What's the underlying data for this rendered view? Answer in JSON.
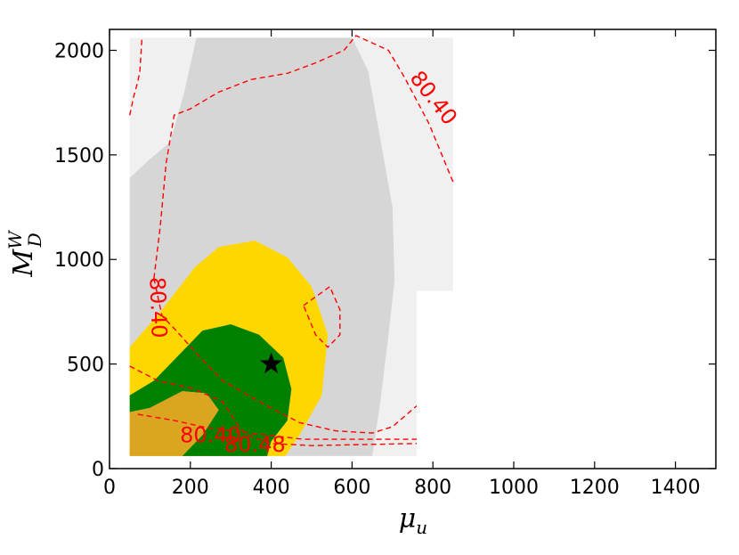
{
  "chart_data": {
    "type": "contour",
    "xlabel": "μ_u",
    "ylabel": "M_D^W",
    "xlim": [
      0,
      1500
    ],
    "ylim": [
      0,
      2100
    ],
    "x_ticks": [
      "0",
      "200",
      "400",
      "600",
      "800",
      "1000",
      "1200",
      "1400"
    ],
    "y_ticks": [
      "0",
      "500",
      "1000",
      "1500",
      "2000"
    ],
    "grid": false,
    "legend": "none",
    "best_fit_point": {
      "x": 400,
      "y": 500,
      "marker": "star"
    },
    "regions": [
      {
        "color": "#f0f0f0",
        "points": [
          [
            50,
            60
          ],
          [
            760,
            60
          ],
          [
            760,
            850
          ],
          [
            850,
            850
          ],
          [
            850,
            2060
          ],
          [
            50,
            2060
          ]
        ]
      },
      {
        "color": "#d6d6d6",
        "points": [
          [
            50,
            1390
          ],
          [
            100,
            1480
          ],
          [
            150,
            1560
          ],
          [
            185,
            1800
          ],
          [
            215,
            2060
          ],
          [
            600,
            2060
          ],
          [
            640,
            1900
          ],
          [
            700,
            1250
          ],
          [
            705,
            900
          ],
          [
            690,
            640
          ],
          [
            670,
            320
          ],
          [
            650,
            60
          ],
          [
            50,
            60
          ]
        ]
      },
      {
        "color": "#ffd700",
        "points": [
          [
            50,
            580
          ],
          [
            130,
            760
          ],
          [
            210,
            960
          ],
          [
            270,
            1060
          ],
          [
            360,
            1090
          ],
          [
            440,
            1010
          ],
          [
            500,
            870
          ],
          [
            540,
            640
          ],
          [
            525,
            350
          ],
          [
            470,
            160
          ],
          [
            435,
            60
          ],
          [
            50,
            60
          ]
        ]
      },
      {
        "color": "#008000",
        "points": [
          [
            50,
            350
          ],
          [
            110,
            420
          ],
          [
            170,
            540
          ],
          [
            230,
            660
          ],
          [
            300,
            690
          ],
          [
            370,
            640
          ],
          [
            430,
            530
          ],
          [
            450,
            380
          ],
          [
            440,
            230
          ],
          [
            400,
            130
          ],
          [
            390,
            60
          ],
          [
            180,
            60
          ],
          [
            230,
            160
          ],
          [
            270,
            280
          ],
          [
            240,
            360
          ],
          [
            180,
            370
          ],
          [
            100,
            290
          ],
          [
            50,
            270
          ]
        ]
      },
      {
        "color": "#daa520",
        "points": [
          [
            50,
            270
          ],
          [
            100,
            290
          ],
          [
            180,
            370
          ],
          [
            240,
            360
          ],
          [
            270,
            280
          ],
          [
            230,
            160
          ],
          [
            180,
            60
          ],
          [
            50,
            60
          ]
        ]
      }
    ],
    "contours": [
      {
        "label": "80.40",
        "points": [
          [
            50,
            1690
          ],
          [
            60,
            1780
          ],
          [
            70,
            1850
          ],
          [
            75,
            1900
          ],
          [
            80,
            2050
          ]
        ]
      },
      {
        "label": "80.40",
        "points": [
          [
            110,
            910
          ],
          [
            125,
            1150
          ],
          [
            140,
            1460
          ],
          [
            160,
            1690
          ],
          [
            200,
            1720
          ],
          [
            270,
            1800
          ],
          [
            350,
            1860
          ],
          [
            440,
            1890
          ],
          [
            510,
            1940
          ],
          [
            580,
            2000
          ],
          [
            610,
            2070
          ],
          [
            690,
            2000
          ],
          [
            730,
            1870
          ],
          [
            790,
            1650
          ],
          [
            850,
            1370
          ]
        ]
      },
      {
        "label": "80.40",
        "points": [
          [
            110,
            910
          ],
          [
            130,
            730
          ],
          [
            165,
            660
          ],
          [
            220,
            540
          ],
          [
            280,
            420
          ],
          [
            390,
            300
          ],
          [
            470,
            220
          ],
          [
            560,
            180
          ],
          [
            650,
            170
          ],
          [
            700,
            200
          ],
          [
            760,
            300
          ]
        ]
      },
      {
        "label": "",
        "points": [
          [
            480,
            780
          ],
          [
            545,
            870
          ],
          [
            570,
            760
          ],
          [
            570,
            640
          ],
          [
            540,
            580
          ],
          [
            510,
            640
          ],
          [
            480,
            780
          ]
        ]
      },
      {
        "label": "80.48",
        "points": [
          [
            50,
            490
          ],
          [
            120,
            420
          ],
          [
            210,
            380
          ],
          [
            280,
            320
          ],
          [
            320,
            200
          ],
          [
            340,
            160
          ],
          [
            400,
            120
          ],
          [
            500,
            110
          ],
          [
            760,
            120
          ]
        ]
      },
      {
        "label": "",
        "points": [
          [
            70,
            260
          ],
          [
            160,
            230
          ],
          [
            230,
            200
          ],
          [
            300,
            180
          ],
          [
            370,
            165
          ],
          [
            480,
            140
          ],
          [
            590,
            140
          ],
          [
            760,
            140
          ]
        ]
      }
    ],
    "annotations": [
      "80.40",
      "80.40",
      "80.40",
      "80.48"
    ]
  }
}
